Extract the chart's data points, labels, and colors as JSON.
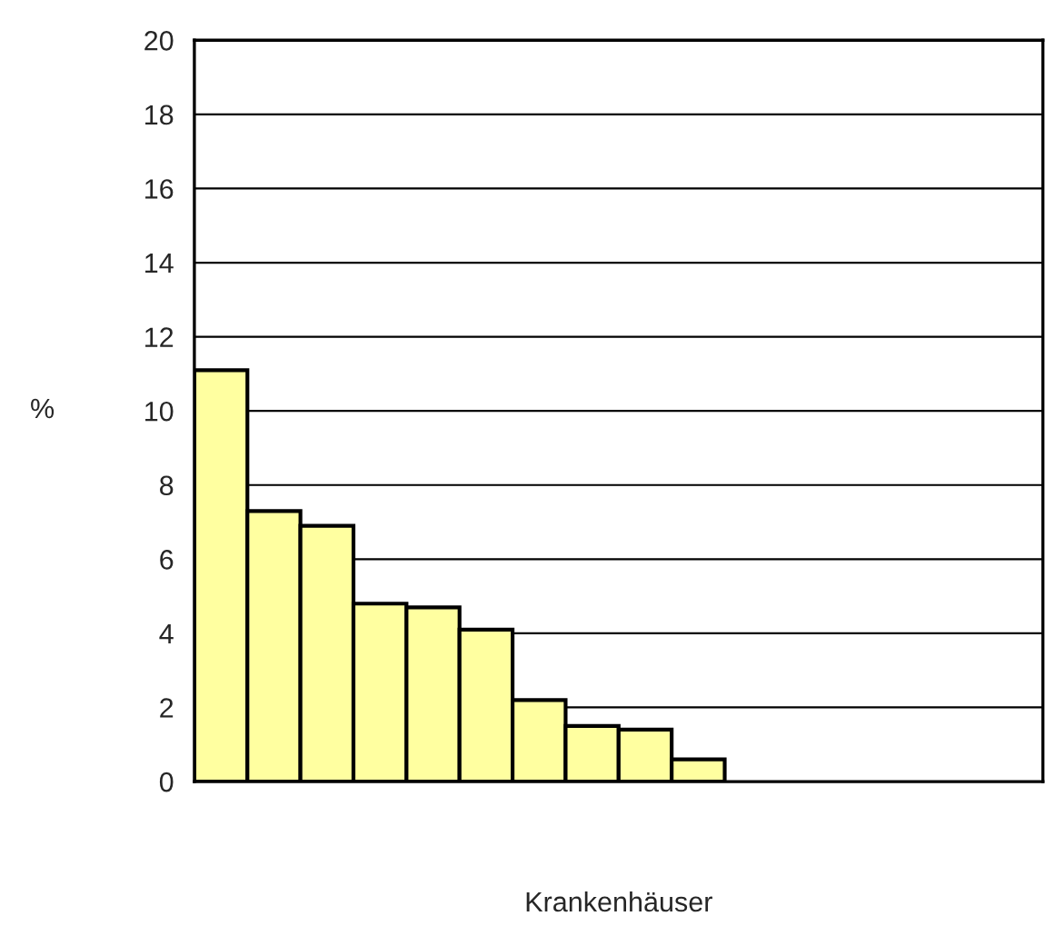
{
  "chart_data": {
    "type": "bar",
    "categories": [
      null,
      null,
      null,
      null,
      null,
      null,
      null,
      null,
      null,
      null,
      null,
      null,
      null,
      null,
      null,
      null
    ],
    "values": [
      11.1,
      7.3,
      6.9,
      4.8,
      4.7,
      4.1,
      2.2,
      1.5,
      1.4,
      0.6,
      null,
      null,
      null,
      null,
      null,
      null
    ],
    "color": "#ffffa0",
    "ylim": [
      0,
      20
    ],
    "yticks": [
      0,
      2,
      4,
      6,
      8,
      10,
      12,
      14,
      16,
      18,
      20
    ],
    "grid": "y",
    "legend": false,
    "xlabel": "Krankenhäuser",
    "ylabel": "%"
  }
}
